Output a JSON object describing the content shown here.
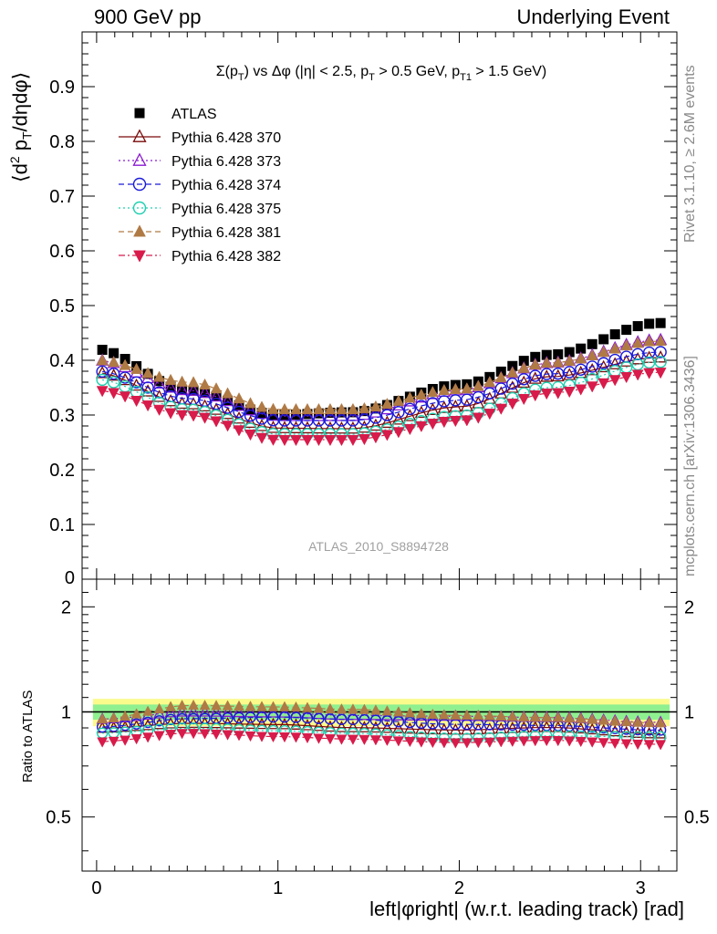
{
  "header": {
    "left": "900 GeV pp",
    "right": "Underlying Event"
  },
  "side_labels": {
    "rivet": "Rivet 3.1.10, ≥ 2.6M events",
    "mcplots": "mcplots.cern.ch [arXiv:1306.3436]"
  },
  "chart_data": {
    "type": "scatter",
    "title": "Σ(p_T) vs Δφ (|η| < 2.5, p_T > 0.5 GeV, p_T1 > 1.5 GeV)",
    "ylabel": "⟨d² p_T/dηdφ⟩",
    "xlabel": "left|φright| (w.r.t. leading track) [rad]",
    "ratio_ylabel": "Ratio to ATLAS",
    "watermark": "ATLAS_2010_S8894728",
    "xlim": [
      -0.08,
      3.2
    ],
    "ylim": [
      0,
      1.0
    ],
    "ratio_ylim": [
      0.35,
      2.4
    ],
    "x_ticks": [
      0,
      1,
      2,
      3
    ],
    "y_ticks": [
      0.1,
      0.2,
      0.3,
      0.4,
      0.5,
      0.6,
      0.7,
      0.8,
      0.9
    ],
    "y_tick_labels": [
      "0.1",
      "0.2",
      "0.3",
      "0.4",
      "0.5",
      "0.6",
      "0.7",
      "0.8",
      "0.9"
    ],
    "y_zero_label": "0",
    "ratio_ticks": [
      0.5,
      1,
      2
    ],
    "ratio_tick_labels": [
      "0.5",
      "1",
      "2"
    ],
    "ratio_band": {
      "inner": [
        0.95,
        1.05
      ],
      "outer": [
        0.91,
        1.09
      ]
    },
    "x_samples": [
      0.0,
      0.5,
      1.0,
      1.4,
      2.0,
      2.5,
      3.1
    ],
    "series": [
      {
        "name": "ATLAS",
        "marker": "square",
        "filled": true,
        "color": "#000000",
        "line": "none",
        "anchors": [
          0.42,
          0.345,
          0.3,
          0.305,
          0.355,
          0.41,
          0.468
        ]
      },
      {
        "name": "Pythia 6.428 370",
        "marker": "triangle-up",
        "filled": false,
        "color": "#7a0a0a",
        "line": "solid",
        "anchors": [
          0.377,
          0.32,
          0.276,
          0.275,
          0.315,
          0.37,
          0.405
        ]
      },
      {
        "name": "Pythia 6.428 373",
        "marker": "triangle-up",
        "filled": false,
        "color": "#8a1ad0",
        "line": "dotted",
        "anchors": [
          0.4,
          0.345,
          0.298,
          0.298,
          0.345,
          0.395,
          0.437
        ]
      },
      {
        "name": "Pythia 6.428 374",
        "marker": "circle",
        "filled": false,
        "color": "#1a1ad8",
        "line": "dashed",
        "anchors": [
          0.38,
          0.33,
          0.29,
          0.29,
          0.327,
          0.375,
          0.415
        ]
      },
      {
        "name": "Pythia 6.428 375",
        "marker": "circle",
        "filled": false,
        "color": "#1fcfb0",
        "line": "dotted",
        "anchors": [
          0.365,
          0.31,
          0.265,
          0.265,
          0.298,
          0.35,
          0.397
        ]
      },
      {
        "name": "Pythia 6.428 381",
        "marker": "triangle-up",
        "filled": true,
        "color": "#b07a45",
        "line": "dashed",
        "anchors": [
          0.4,
          0.36,
          0.31,
          0.31,
          0.347,
          0.395,
          0.435
        ]
      },
      {
        "name": "Pythia 6.428 382",
        "marker": "triangle-down",
        "filled": true,
        "color": "#d81b4a",
        "line": "dashdot",
        "anchors": [
          0.345,
          0.3,
          0.255,
          0.255,
          0.29,
          0.34,
          0.378
        ]
      }
    ]
  }
}
